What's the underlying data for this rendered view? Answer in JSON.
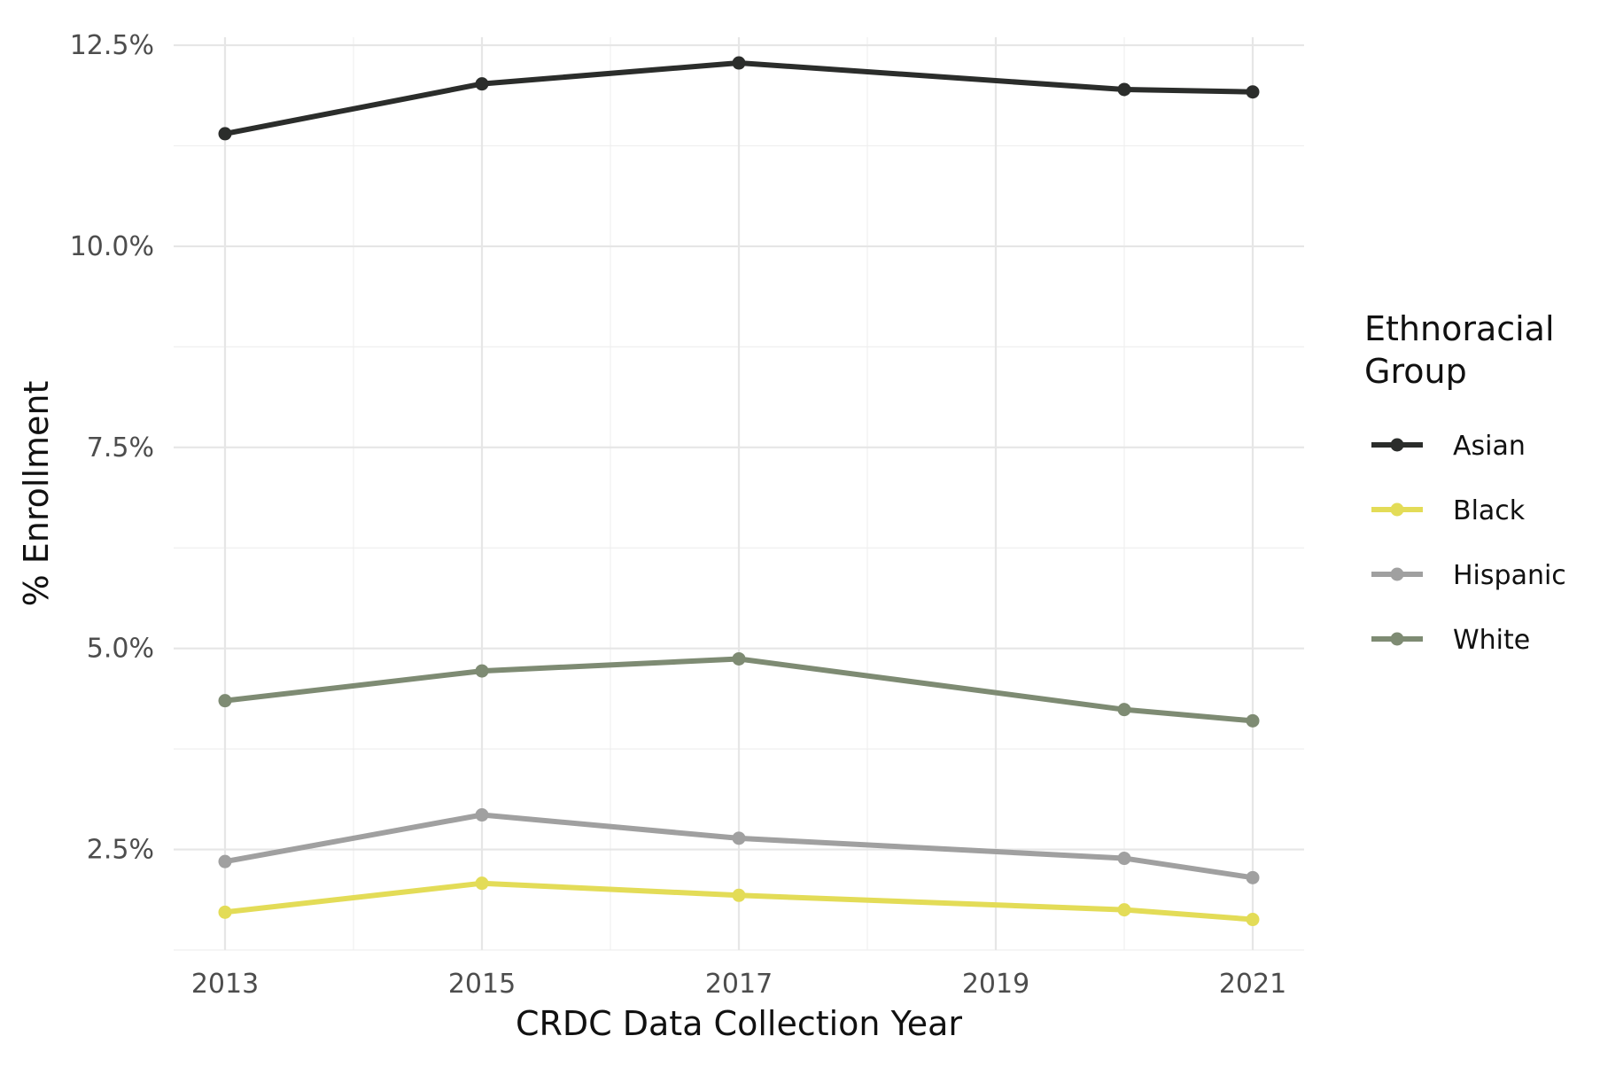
{
  "chart_data": {
    "type": "line",
    "title": "",
    "xlabel": "CRDC Data Collection Year",
    "ylabel": "% Enrollment",
    "x": [
      2013,
      2015,
      2017,
      2020,
      2021
    ],
    "xlim": [
      2012.6,
      2021.4
    ],
    "ylim": [
      1.25,
      12.6
    ],
    "x_ticks": [
      2013,
      2015,
      2017,
      2019,
      2021
    ],
    "x_tick_labels": [
      "2013",
      "2015",
      "2017",
      "2019",
      "2021"
    ],
    "x_minor_ticks": [
      2014,
      2016,
      2018,
      2020
    ],
    "y_ticks": [
      2.5,
      5.0,
      7.5,
      10.0,
      12.5
    ],
    "y_tick_labels": [
      "2.5%",
      "5.0%",
      "7.5%",
      "10.0%",
      "12.5%"
    ],
    "y_minor_ticks": [
      1.25,
      3.75,
      6.25,
      8.75,
      11.25
    ],
    "grid": true,
    "legend": {
      "title_lines": [
        "Ethnoracial",
        "Group"
      ],
      "position": "right"
    },
    "series": [
      {
        "name": "Asian",
        "color": "#2b2d2b",
        "values": [
          11.4,
          12.02,
          12.28,
          11.95,
          11.92
        ]
      },
      {
        "name": "Black",
        "color": "#e3dc57",
        "values": [
          1.72,
          2.08,
          1.93,
          1.75,
          1.63
        ]
      },
      {
        "name": "Hispanic",
        "color": "#a0a0a0",
        "values": [
          2.35,
          2.93,
          2.64,
          2.39,
          2.15
        ]
      },
      {
        "name": "White",
        "color": "#7e8b73",
        "values": [
          4.35,
          4.72,
          4.87,
          4.24,
          4.1
        ]
      }
    ]
  }
}
